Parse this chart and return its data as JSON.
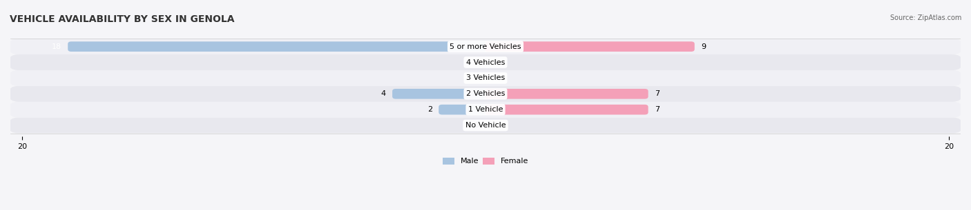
{
  "title": "VEHICLE AVAILABILITY BY SEX IN GENOLA",
  "source": "Source: ZipAtlas.com",
  "categories": [
    "No Vehicle",
    "1 Vehicle",
    "2 Vehicles",
    "3 Vehicles",
    "4 Vehicles",
    "5 or more Vehicles"
  ],
  "male_values": [
    0,
    2,
    4,
    0,
    0,
    18
  ],
  "female_values": [
    0,
    7,
    7,
    0,
    0,
    9
  ],
  "male_color": "#a8c4e0",
  "female_color": "#f4a0b8",
  "male_label": "Male",
  "female_label": "Female",
  "xlim": 20,
  "bar_height": 0.6,
  "row_bg_color": "#e8e8ee",
  "row_bg_color_alt": "#f0f0f5",
  "background_color": "#f5f5f8",
  "title_fontsize": 10,
  "label_fontsize": 8,
  "tick_fontsize": 8,
  "source_fontsize": 7
}
